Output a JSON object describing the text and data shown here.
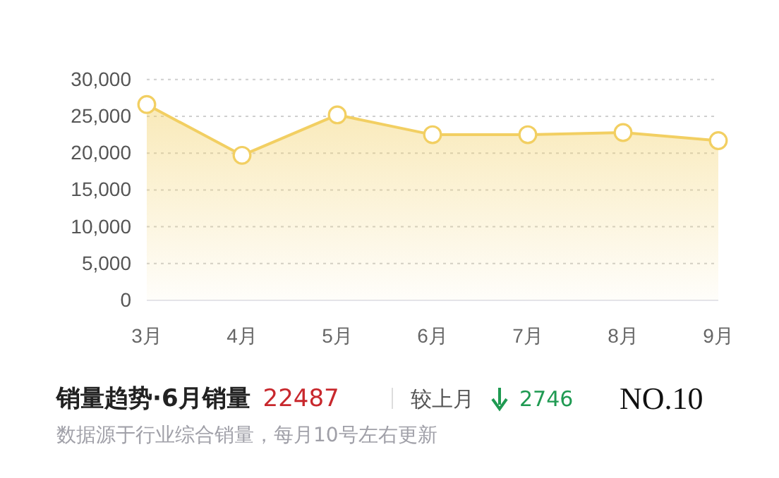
{
  "chart_data": {
    "type": "area",
    "title": "销量趋势·6月销量",
    "categories": [
      "3月",
      "4月",
      "5月",
      "6月",
      "7月",
      "8月",
      "9月"
    ],
    "series": [
      {
        "color": "#f2cf62",
        "values": [
          26600,
          19700,
          25200,
          22500,
          22500,
          22800,
          21700
        ]
      }
    ],
    "ylim": [
      0,
      30000
    ],
    "yticks": [
      {
        "value": 0,
        "label": "0"
      },
      {
        "value": 5000,
        "label": "5,000"
      },
      {
        "value": 10000,
        "label": "10,000"
      },
      {
        "value": 15000,
        "label": "15,000"
      },
      {
        "value": 20000,
        "label": "20,000"
      },
      {
        "value": 25000,
        "label": "25,000"
      },
      {
        "value": 30000,
        "label": "30,000"
      }
    ],
    "grid": "y",
    "marker": "circle",
    "annotations": [
      "22487",
      "较上月",
      "2746",
      "NO.10",
      "数据源于行业综合销量，每月10号左右更新"
    ]
  }
}
